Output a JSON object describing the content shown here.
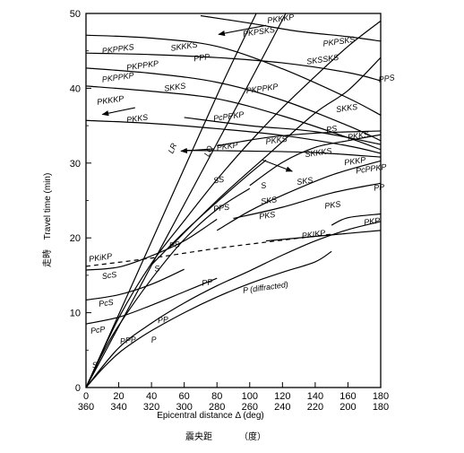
{
  "chart_data": {
    "type": "line",
    "x_label": "Epicentral distance Δ (deg)",
    "x_label_cn": "震央距",
    "x_label_cn_unit": "（度）",
    "y_label": "Travel time (min)",
    "y_label_cn": "走時",
    "x_range": [
      0,
      180
    ],
    "y_range": [
      0,
      50
    ],
    "x_ticks": [
      "0",
      "20",
      "40",
      "60",
      "80",
      "100",
      "120",
      "140",
      "160",
      "180"
    ],
    "x_ticks_lower": [
      "360",
      "340",
      "320",
      "300",
      "280",
      "260",
      "240",
      "220",
      "200",
      "180"
    ],
    "y_ticks": [
      "0",
      "10",
      "20",
      "30",
      "40",
      "50"
    ],
    "series": [
      {
        "name": "P",
        "dashed": false,
        "points": [
          [
            0,
            0
          ],
          [
            10,
            2.5
          ],
          [
            20,
            4.6
          ],
          [
            30,
            6.2
          ],
          [
            40,
            7.6
          ],
          [
            60,
            10.0
          ],
          [
            80,
            12.1
          ],
          [
            100,
            13.9
          ],
          [
            120,
            15.4
          ],
          [
            140,
            16.8
          ],
          [
            150,
            18.2
          ]
        ]
      },
      {
        "name": "PP",
        "dashed": false,
        "points": [
          [
            0,
            0
          ],
          [
            20,
            5.3
          ],
          [
            40,
            8.6
          ],
          [
            60,
            11.3
          ],
          [
            80,
            13.6
          ],
          [
            100,
            15.6
          ],
          [
            120,
            17.7
          ],
          [
            140,
            19.6
          ],
          [
            160,
            21.1
          ],
          [
            180,
            22.2
          ]
        ]
      },
      {
        "name": "PcP",
        "dashed": false,
        "points": [
          [
            0,
            8.5
          ],
          [
            20,
            9.4
          ],
          [
            40,
            11.0
          ],
          [
            60,
            12.8
          ],
          [
            80,
            14.6
          ]
        ]
      },
      {
        "name": "PcS",
        "dashed": false,
        "points": [
          [
            0,
            11.7
          ],
          [
            20,
            12.4
          ],
          [
            40,
            13.8
          ],
          [
            60,
            15.8
          ]
        ]
      },
      {
        "name": "ScS",
        "dashed": false,
        "points": [
          [
            0,
            15.7
          ],
          [
            20,
            16.1
          ],
          [
            40,
            17.6
          ],
          [
            60,
            19.6
          ],
          [
            80,
            22.5
          ]
        ]
      },
      {
        "name": "PKiKP",
        "dashed": true,
        "points": [
          [
            0,
            16.2
          ],
          [
            40,
            17.3
          ],
          [
            80,
            18.6
          ],
          [
            120,
            19.7
          ],
          [
            150,
            20.5
          ]
        ]
      },
      {
        "name": "PKIKP",
        "dashed": false,
        "points": [
          [
            110,
            19.6
          ],
          [
            140,
            20.2
          ],
          [
            160,
            20.6
          ],
          [
            180,
            21.0
          ]
        ]
      },
      {
        "name": "PKP",
        "dashed": false,
        "points": [
          [
            150,
            21.7
          ],
          [
            160,
            22.7
          ],
          [
            180,
            23.2
          ]
        ]
      },
      {
        "name": "PKS",
        "dashed": false,
        "points": [
          [
            90,
            22.6
          ],
          [
            120,
            24.1
          ],
          [
            150,
            26.0
          ],
          [
            180,
            27.3
          ]
        ]
      },
      {
        "name": "SKS",
        "dashed": false,
        "points": [
          [
            80,
            21.0
          ],
          [
            100,
            23.6
          ],
          [
            120,
            25.7
          ],
          [
            150,
            28.4
          ],
          [
            180,
            30.3
          ]
        ]
      },
      {
        "name": "S",
        "dashed": false,
        "points": [
          [
            0,
            0
          ],
          [
            10,
            4.5
          ],
          [
            20,
            8.3
          ],
          [
            40,
            14.5
          ],
          [
            60,
            19.8
          ],
          [
            80,
            23.8
          ],
          [
            100,
            26.6
          ]
        ]
      },
      {
        "name": "PS",
        "dashed": false,
        "points": [
          [
            40,
            16.4
          ],
          [
            60,
            20.8
          ],
          [
            80,
            24.8
          ],
          [
            100,
            28.6
          ],
          [
            110,
            30.4
          ]
        ]
      },
      {
        "name": "PPS",
        "dashed": false,
        "points": [
          [
            50,
            18.5
          ],
          [
            80,
            25.0
          ],
          [
            110,
            30.9
          ],
          [
            140,
            36.7
          ],
          [
            160,
            39.7
          ],
          [
            180,
            44.1
          ]
        ]
      },
      {
        "name": "SS",
        "dashed": false,
        "points": [
          [
            0,
            0
          ],
          [
            20,
            9.3
          ],
          [
            40,
            16.6
          ],
          [
            60,
            22.3
          ],
          [
            80,
            27.8
          ],
          [
            100,
            32.8
          ],
          [
            120,
            37.4
          ],
          [
            140,
            41.6
          ],
          [
            160,
            45.6
          ],
          [
            180,
            49.0
          ]
        ]
      },
      {
        "name": "SKKS",
        "dashed": false,
        "points": [
          [
            100,
            27.0
          ],
          [
            120,
            30.1
          ],
          [
            140,
            32.1
          ],
          [
            160,
            33.0
          ],
          [
            180,
            33.8
          ]
        ]
      },
      {
        "name": "PKKP",
        "dashed": false,
        "points": [
          [
            60,
            31.7
          ],
          [
            100,
            31.6
          ],
          [
            140,
            31.4
          ],
          [
            180,
            30.8
          ]
        ]
      },
      {
        "name": "PKKS",
        "dashed": false,
        "points": [
          [
            80,
            32.3
          ],
          [
            110,
            33.4
          ],
          [
            140,
            34.0
          ],
          [
            180,
            34.3
          ]
        ]
      },
      {
        "name": "PcPPKP",
        "dashed": false,
        "points": [
          [
            60,
            36.1
          ],
          [
            100,
            35.0
          ],
          [
            140,
            34.2
          ],
          [
            180,
            32.5
          ]
        ]
      },
      {
        "name": "PKKS (upper)",
        "dashed": false,
        "points": [
          [
            0,
            35.7
          ],
          [
            40,
            35.3
          ],
          [
            80,
            34.6
          ],
          [
            120,
            33.7
          ],
          [
            160,
            32.3
          ],
          [
            180,
            31.3
          ]
        ]
      },
      {
        "name": "PKPPKP",
        "dashed": false,
        "points": [
          [
            0,
            40.3
          ],
          [
            40,
            39.6
          ],
          [
            80,
            38.6
          ],
          [
            120,
            36.3
          ],
          [
            160,
            33.4
          ],
          [
            180,
            31.8
          ]
        ]
      },
      {
        "name": "SKKS",
        "dashed": false,
        "points": [
          [
            0,
            42.7
          ],
          [
            40,
            42.0
          ],
          [
            80,
            40.8
          ],
          [
            120,
            38.4
          ],
          [
            160,
            35.0
          ],
          [
            180,
            33.0
          ]
        ]
      },
      {
        "name": "PKPPKS",
        "dashed": false,
        "points": [
          [
            0,
            44.7
          ],
          [
            40,
            44.5
          ],
          [
            80,
            44.1
          ],
          [
            120,
            43.4
          ],
          [
            160,
            42.1
          ],
          [
            180,
            41.0
          ]
        ]
      },
      {
        "name": "SKSSKS",
        "dashed": false,
        "points": [
          [
            70,
            49.7
          ],
          [
            100,
            48.7
          ],
          [
            130,
            47.6
          ],
          [
            160,
            46.9
          ],
          [
            180,
            46.3
          ]
        ]
      },
      {
        "name": "PKPSKS",
        "dashed": false,
        "points": [
          [
            0,
            47.1
          ],
          [
            40,
            46.7
          ],
          [
            80,
            45.6
          ],
          [
            120,
            42.6
          ],
          [
            160,
            38.7
          ],
          [
            180,
            36.4
          ]
        ]
      },
      {
        "name": "LR",
        "dashed": false,
        "points": [
          [
            0,
            0
          ],
          [
            41,
            20
          ],
          [
            82,
            40
          ],
          [
            104,
            50
          ]
        ]
      },
      {
        "name": "LQ",
        "dashed": false,
        "points": [
          [
            0,
            0
          ],
          [
            49,
            20
          ],
          [
            98,
            40
          ],
          [
            122,
            50
          ]
        ]
      }
    ]
  },
  "labels": [
    {
      "text": "PKKKP",
      "x": 111,
      "y": 48.7
    },
    {
      "text": "PKPSKS",
      "x": 96,
      "y": 46.9
    },
    {
      "text": "PKPSKS",
      "x": 145,
      "y": 45.6
    },
    {
      "text": "PKPPKS",
      "x": 10,
      "y": 44.6
    },
    {
      "text": "SKKKS",
      "x": 52,
      "y": 45.0
    },
    {
      "text": "SKSSKS",
      "x": 135,
      "y": 43.2
    },
    {
      "text": "PKPPKP",
      "x": 25,
      "y": 42.4
    },
    {
      "text": "PPP",
      "x": 66,
      "y": 43.6
    },
    {
      "text": "PKPPKP",
      "x": 10,
      "y": 40.8
    },
    {
      "text": "SKKS",
      "x": 48,
      "y": 39.6
    },
    {
      "text": "PKPPKP",
      "x": 98,
      "y": 39.3
    },
    {
      "text": "PPS",
      "x": 179,
      "y": 40.8
    },
    {
      "text": "PKKKP",
      "x": 7,
      "y": 37.8
    },
    {
      "text": "SKKS",
      "x": 153,
      "y": 36.8
    },
    {
      "text": "PKKS",
      "x": 25,
      "y": 35.4
    },
    {
      "text": "PcPPKP",
      "x": 78,
      "y": 35.6
    },
    {
      "text": "PS",
      "x": 147,
      "y": 34.1
    },
    {
      "text": "PKKS",
      "x": 160,
      "y": 33.1
    },
    {
      "text": "PKKS",
      "x": 110,
      "y": 32.5
    },
    {
      "text": "PKKP",
      "x": 80,
      "y": 31.7
    },
    {
      "text": "SKKKS",
      "x": 134,
      "y": 30.8
    },
    {
      "text": "PKKP",
      "x": 158,
      "y": 29.7
    },
    {
      "text": "PcPPKP",
      "x": 165,
      "y": 28.6
    },
    {
      "text": "LR",
      "x": 53,
      "y": 31.2
    },
    {
      "text": "LQ",
      "x": 75,
      "y": 30.8
    },
    {
      "text": "SS",
      "x": 78,
      "y": 27.3
    },
    {
      "text": "SKS",
      "x": 129,
      "y": 27.1
    },
    {
      "text": "S",
      "x": 107,
      "y": 26.6
    },
    {
      "text": "PP",
      "x": 176,
      "y": 26.3
    },
    {
      "text": "SKS",
      "x": 107,
      "y": 24.5
    },
    {
      "text": "PPS",
      "x": 78,
      "y": 23.5
    },
    {
      "text": "PKS",
      "x": 146,
      "y": 23.9
    },
    {
      "text": "PKS",
      "x": 106,
      "y": 22.5
    },
    {
      "text": "PKP",
      "x": 170,
      "y": 21.7
    },
    {
      "text": "PKIKP",
      "x": 132,
      "y": 19.9
    },
    {
      "text": "PS",
      "x": 51,
      "y": 18.6
    },
    {
      "text": "PKiKP",
      "x": 2,
      "y": 16.8
    },
    {
      "text": "S",
      "x": 42,
      "y": 15.5
    },
    {
      "text": "ScS",
      "x": 10,
      "y": 14.5
    },
    {
      "text": "PP",
      "x": 71,
      "y": 13.6
    },
    {
      "text": "P  (diffracted)",
      "x": 96,
      "y": 12.6
    },
    {
      "text": "PcS",
      "x": 8,
      "y": 10.8
    },
    {
      "text": "PP",
      "x": 44,
      "y": 8.6
    },
    {
      "text": "PcP",
      "x": 3,
      "y": 7.2
    },
    {
      "text": "PPP",
      "x": 21,
      "y": 5.8
    },
    {
      "text": "P",
      "x": 40,
      "y": 6.0
    },
    {
      "text": "S",
      "x": 4,
      "y": 2.6
    }
  ],
  "arrows": [
    {
      "from": [
        110,
        48.4
      ],
      "to": [
        81,
        47.2
      ]
    },
    {
      "from": [
        30,
        37.4
      ],
      "to": [
        10,
        36.5
      ]
    },
    {
      "from": [
        78,
        31.9
      ],
      "to": [
        58,
        31.6
      ]
    },
    {
      "from": [
        108,
        30.4
      ],
      "to": [
        126,
        28.9
      ]
    }
  ]
}
